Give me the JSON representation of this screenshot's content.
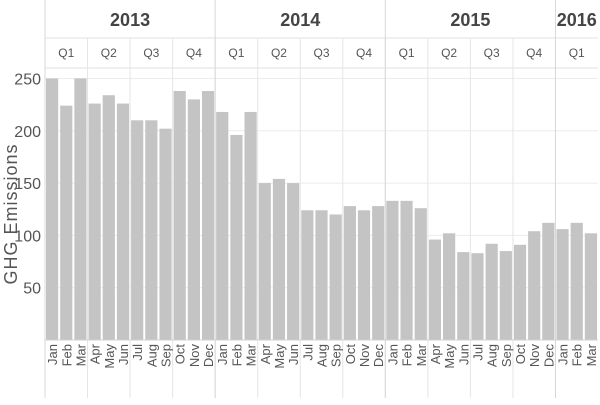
{
  "chart_data": {
    "type": "bar",
    "ylabel": "GHG Emissions",
    "ylim": [
      0,
      260
    ],
    "yticks": [
      50,
      100,
      150,
      200,
      250
    ],
    "grid": true,
    "bar_color": "#c4c4c4",
    "categories": [
      "Jan",
      "Feb",
      "Mar",
      "Apr",
      "May",
      "Jun",
      "Jul",
      "Aug",
      "Sep",
      "Oct",
      "Nov",
      "Dec",
      "Jan",
      "Feb",
      "Mar",
      "Apr",
      "May",
      "Jun",
      "Jul",
      "Aug",
      "Sep",
      "Oct",
      "Nov",
      "Dec",
      "Jan",
      "Feb",
      "Mar",
      "Apr",
      "May",
      "Jun",
      "Jul",
      "Aug",
      "Sep",
      "Oct",
      "Nov",
      "Dec",
      "Jan",
      "Feb",
      "Mar"
    ],
    "values": [
      250,
      224,
      250,
      226,
      234,
      226,
      210,
      210,
      202,
      238,
      230,
      238,
      218,
      196,
      218,
      150,
      154,
      150,
      124,
      124,
      120,
      128,
      124,
      128,
      133,
      133,
      126,
      96,
      102,
      84,
      83,
      92,
      85,
      91,
      104,
      112,
      106,
      112,
      102
    ],
    "years": [
      {
        "label": "2013",
        "months": 12
      },
      {
        "label": "2014",
        "months": 12
      },
      {
        "label": "2015",
        "months": 12
      },
      {
        "label": "2016",
        "months": 3
      }
    ],
    "quarters": [
      "Q1",
      "Q2",
      "Q3",
      "Q4",
      "Q1",
      "Q2",
      "Q3",
      "Q4",
      "Q1",
      "Q2",
      "Q3",
      "Q4",
      "Q1"
    ]
  }
}
